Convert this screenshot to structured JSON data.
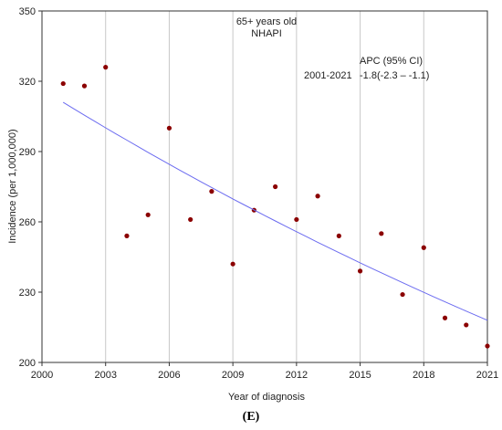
{
  "panel_label": "(E)",
  "chart_data": {
    "type": "scatter",
    "title": "65+ years old",
    "subtitle": "NHAPI",
    "xlabel": "Year of diagnosis",
    "ylabel": "Incidence (per 1,000,000)",
    "xlim": [
      2000,
      2021
    ],
    "ylim": [
      200,
      350
    ],
    "xticks": [
      2000,
      2003,
      2006,
      2009,
      2012,
      2015,
      2018,
      2021
    ],
    "yticks": [
      200,
      230,
      260,
      290,
      320,
      350
    ],
    "grid": "vertical",
    "point_color": "#8b0000",
    "trend_color": "#6b6bf0",
    "points": {
      "x": [
        2001,
        2002,
        2003,
        2004,
        2005,
        2006,
        2007,
        2008,
        2009,
        2010,
        2011,
        2012,
        2013,
        2014,
        2015,
        2016,
        2017,
        2018,
        2019,
        2020,
        2021
      ],
      "y": [
        319,
        318,
        326,
        254,
        263,
        300,
        261,
        273,
        242,
        265,
        275,
        261,
        271,
        254,
        239,
        255,
        229,
        249,
        219,
        216,
        207
      ]
    },
    "trend": {
      "type": "line",
      "x_start": 2001,
      "x_end": 2021,
      "y_start": 311,
      "y_end": 218,
      "apc_percent": -1.8
    },
    "annotation": {
      "header": "APC (95% CI)",
      "period": "2001-2021",
      "value": "-1.8(-2.3 – -1.1)"
    }
  }
}
